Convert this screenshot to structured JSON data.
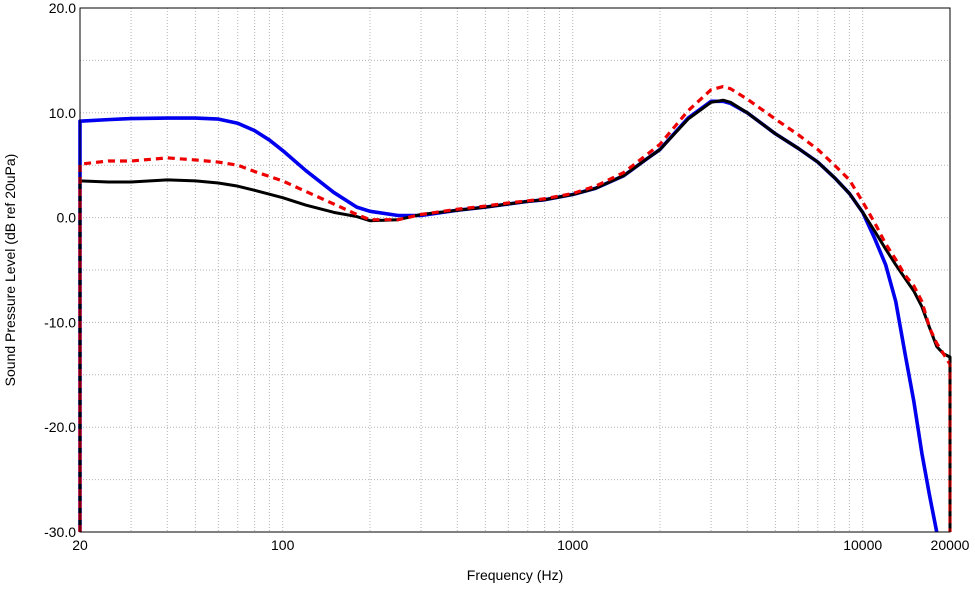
{
  "chart_data": {
    "type": "line",
    "xlabel": "Frequency (Hz)",
    "ylabel": "Sound Pressure Level (dB ref 20uPa)",
    "x_scale": "log",
    "xlim": [
      20,
      20000
    ],
    "ylim": [
      -30,
      20
    ],
    "grid": true,
    "x_ticks": [
      {
        "value": 20,
        "label": "20"
      },
      {
        "value": 100,
        "label": "100"
      },
      {
        "value": 1000,
        "label": "1000"
      },
      {
        "value": 10000,
        "label": "10000"
      },
      {
        "value": 20000,
        "label": "20000"
      }
    ],
    "y_ticks": [
      {
        "value": 20,
        "label": "20.0"
      },
      {
        "value": 10,
        "label": "10.0"
      },
      {
        "value": 0,
        "label": "0.0"
      },
      {
        "value": -10,
        "label": "-10.0"
      },
      {
        "value": -20,
        "label": "-20.0"
      },
      {
        "value": -30,
        "label": "-30.0"
      }
    ],
    "series": [
      {
        "color": "#0000ee",
        "style": "solid",
        "points": [
          [
            20,
            -30
          ],
          [
            20,
            9.2
          ],
          [
            25,
            9.35
          ],
          [
            30,
            9.45
          ],
          [
            40,
            9.5
          ],
          [
            50,
            9.5
          ],
          [
            60,
            9.4
          ],
          [
            70,
            9.0
          ],
          [
            80,
            8.3
          ],
          [
            90,
            7.4
          ],
          [
            100,
            6.4
          ],
          [
            120,
            4.5
          ],
          [
            150,
            2.4
          ],
          [
            180,
            1.0
          ],
          [
            200,
            0.6
          ],
          [
            250,
            0.2
          ],
          [
            300,
            0.2
          ],
          [
            400,
            0.7
          ],
          [
            500,
            1.0
          ],
          [
            600,
            1.3
          ],
          [
            700,
            1.55
          ],
          [
            800,
            1.7
          ],
          [
            1000,
            2.2
          ],
          [
            1200,
            2.8
          ],
          [
            1500,
            4.0
          ],
          [
            1800,
            5.6
          ],
          [
            2000,
            6.5
          ],
          [
            2500,
            9.5
          ],
          [
            3000,
            11.1
          ],
          [
            3300,
            11.1
          ],
          [
            3500,
            10.9
          ],
          [
            4000,
            10.0
          ],
          [
            5000,
            8.0
          ],
          [
            6000,
            6.6
          ],
          [
            7000,
            5.3
          ],
          [
            8000,
            3.8
          ],
          [
            9000,
            2.3
          ],
          [
            10000,
            0.5
          ],
          [
            11000,
            -2.0
          ],
          [
            12000,
            -4.5
          ],
          [
            13000,
            -8.0
          ],
          [
            14000,
            -13.0
          ],
          [
            15000,
            -17.5
          ],
          [
            16000,
            -22.5
          ],
          [
            17000,
            -26.5
          ],
          [
            18000,
            -30
          ]
        ]
      },
      {
        "color": "#000000",
        "style": "solid",
        "points": [
          [
            20,
            -30
          ],
          [
            20,
            3.5
          ],
          [
            25,
            3.4
          ],
          [
            30,
            3.4
          ],
          [
            40,
            3.6
          ],
          [
            50,
            3.5
          ],
          [
            60,
            3.3
          ],
          [
            70,
            3.0
          ],
          [
            80,
            2.6
          ],
          [
            100,
            1.9
          ],
          [
            120,
            1.2
          ],
          [
            150,
            0.5
          ],
          [
            180,
            0.1
          ],
          [
            200,
            -0.3
          ],
          [
            250,
            -0.2
          ],
          [
            300,
            0.3
          ],
          [
            400,
            0.7
          ],
          [
            500,
            1.0
          ],
          [
            600,
            1.3
          ],
          [
            700,
            1.55
          ],
          [
            800,
            1.7
          ],
          [
            1000,
            2.2
          ],
          [
            1200,
            2.8
          ],
          [
            1500,
            4.0
          ],
          [
            1800,
            5.6
          ],
          [
            2000,
            6.5
          ],
          [
            2500,
            9.4
          ],
          [
            3000,
            11.0
          ],
          [
            3300,
            11.2
          ],
          [
            3500,
            11.0
          ],
          [
            4000,
            10.0
          ],
          [
            5000,
            8.0
          ],
          [
            6000,
            6.6
          ],
          [
            7000,
            5.3
          ],
          [
            8000,
            3.8
          ],
          [
            9000,
            2.3
          ],
          [
            10000,
            0.5
          ],
          [
            11000,
            -1.3
          ],
          [
            12000,
            -3.0
          ],
          [
            13000,
            -4.5
          ],
          [
            14000,
            -5.8
          ],
          [
            15000,
            -7.0
          ],
          [
            16000,
            -8.5
          ],
          [
            17000,
            -10.5
          ],
          [
            18000,
            -12.3
          ],
          [
            19000,
            -13.0
          ],
          [
            20000,
            -13.3
          ],
          [
            20000,
            -30
          ]
        ]
      },
      {
        "color": "#ee0000",
        "style": "dashed",
        "points": [
          [
            20,
            -30
          ],
          [
            20,
            5.1
          ],
          [
            25,
            5.4
          ],
          [
            30,
            5.4
          ],
          [
            40,
            5.7
          ],
          [
            50,
            5.5
          ],
          [
            60,
            5.3
          ],
          [
            70,
            5.0
          ],
          [
            80,
            4.4
          ],
          [
            100,
            3.5
          ],
          [
            120,
            2.5
          ],
          [
            150,
            1.3
          ],
          [
            180,
            0.3
          ],
          [
            200,
            -0.2
          ],
          [
            250,
            -0.2
          ],
          [
            300,
            0.3
          ],
          [
            400,
            0.8
          ],
          [
            500,
            1.1
          ],
          [
            600,
            1.4
          ],
          [
            700,
            1.6
          ],
          [
            800,
            1.8
          ],
          [
            1000,
            2.3
          ],
          [
            1200,
            3.0
          ],
          [
            1500,
            4.3
          ],
          [
            1800,
            6.0
          ],
          [
            2000,
            7.0
          ],
          [
            2500,
            10.2
          ],
          [
            3000,
            12.2
          ],
          [
            3300,
            12.5
          ],
          [
            3500,
            12.3
          ],
          [
            4000,
            11.3
          ],
          [
            5000,
            9.4
          ],
          [
            6000,
            7.9
          ],
          [
            7000,
            6.5
          ],
          [
            8000,
            5.0
          ],
          [
            9000,
            3.6
          ],
          [
            10000,
            1.5
          ],
          [
            11000,
            -0.5
          ],
          [
            12000,
            -2.5
          ],
          [
            13000,
            -4.0
          ],
          [
            14000,
            -5.5
          ],
          [
            15000,
            -6.5
          ],
          [
            16000,
            -8.0
          ],
          [
            17000,
            -10.5
          ],
          [
            18000,
            -12.0
          ],
          [
            19000,
            -13.0
          ],
          [
            20000,
            -14.0
          ],
          [
            20000,
            -30
          ]
        ]
      }
    ]
  }
}
